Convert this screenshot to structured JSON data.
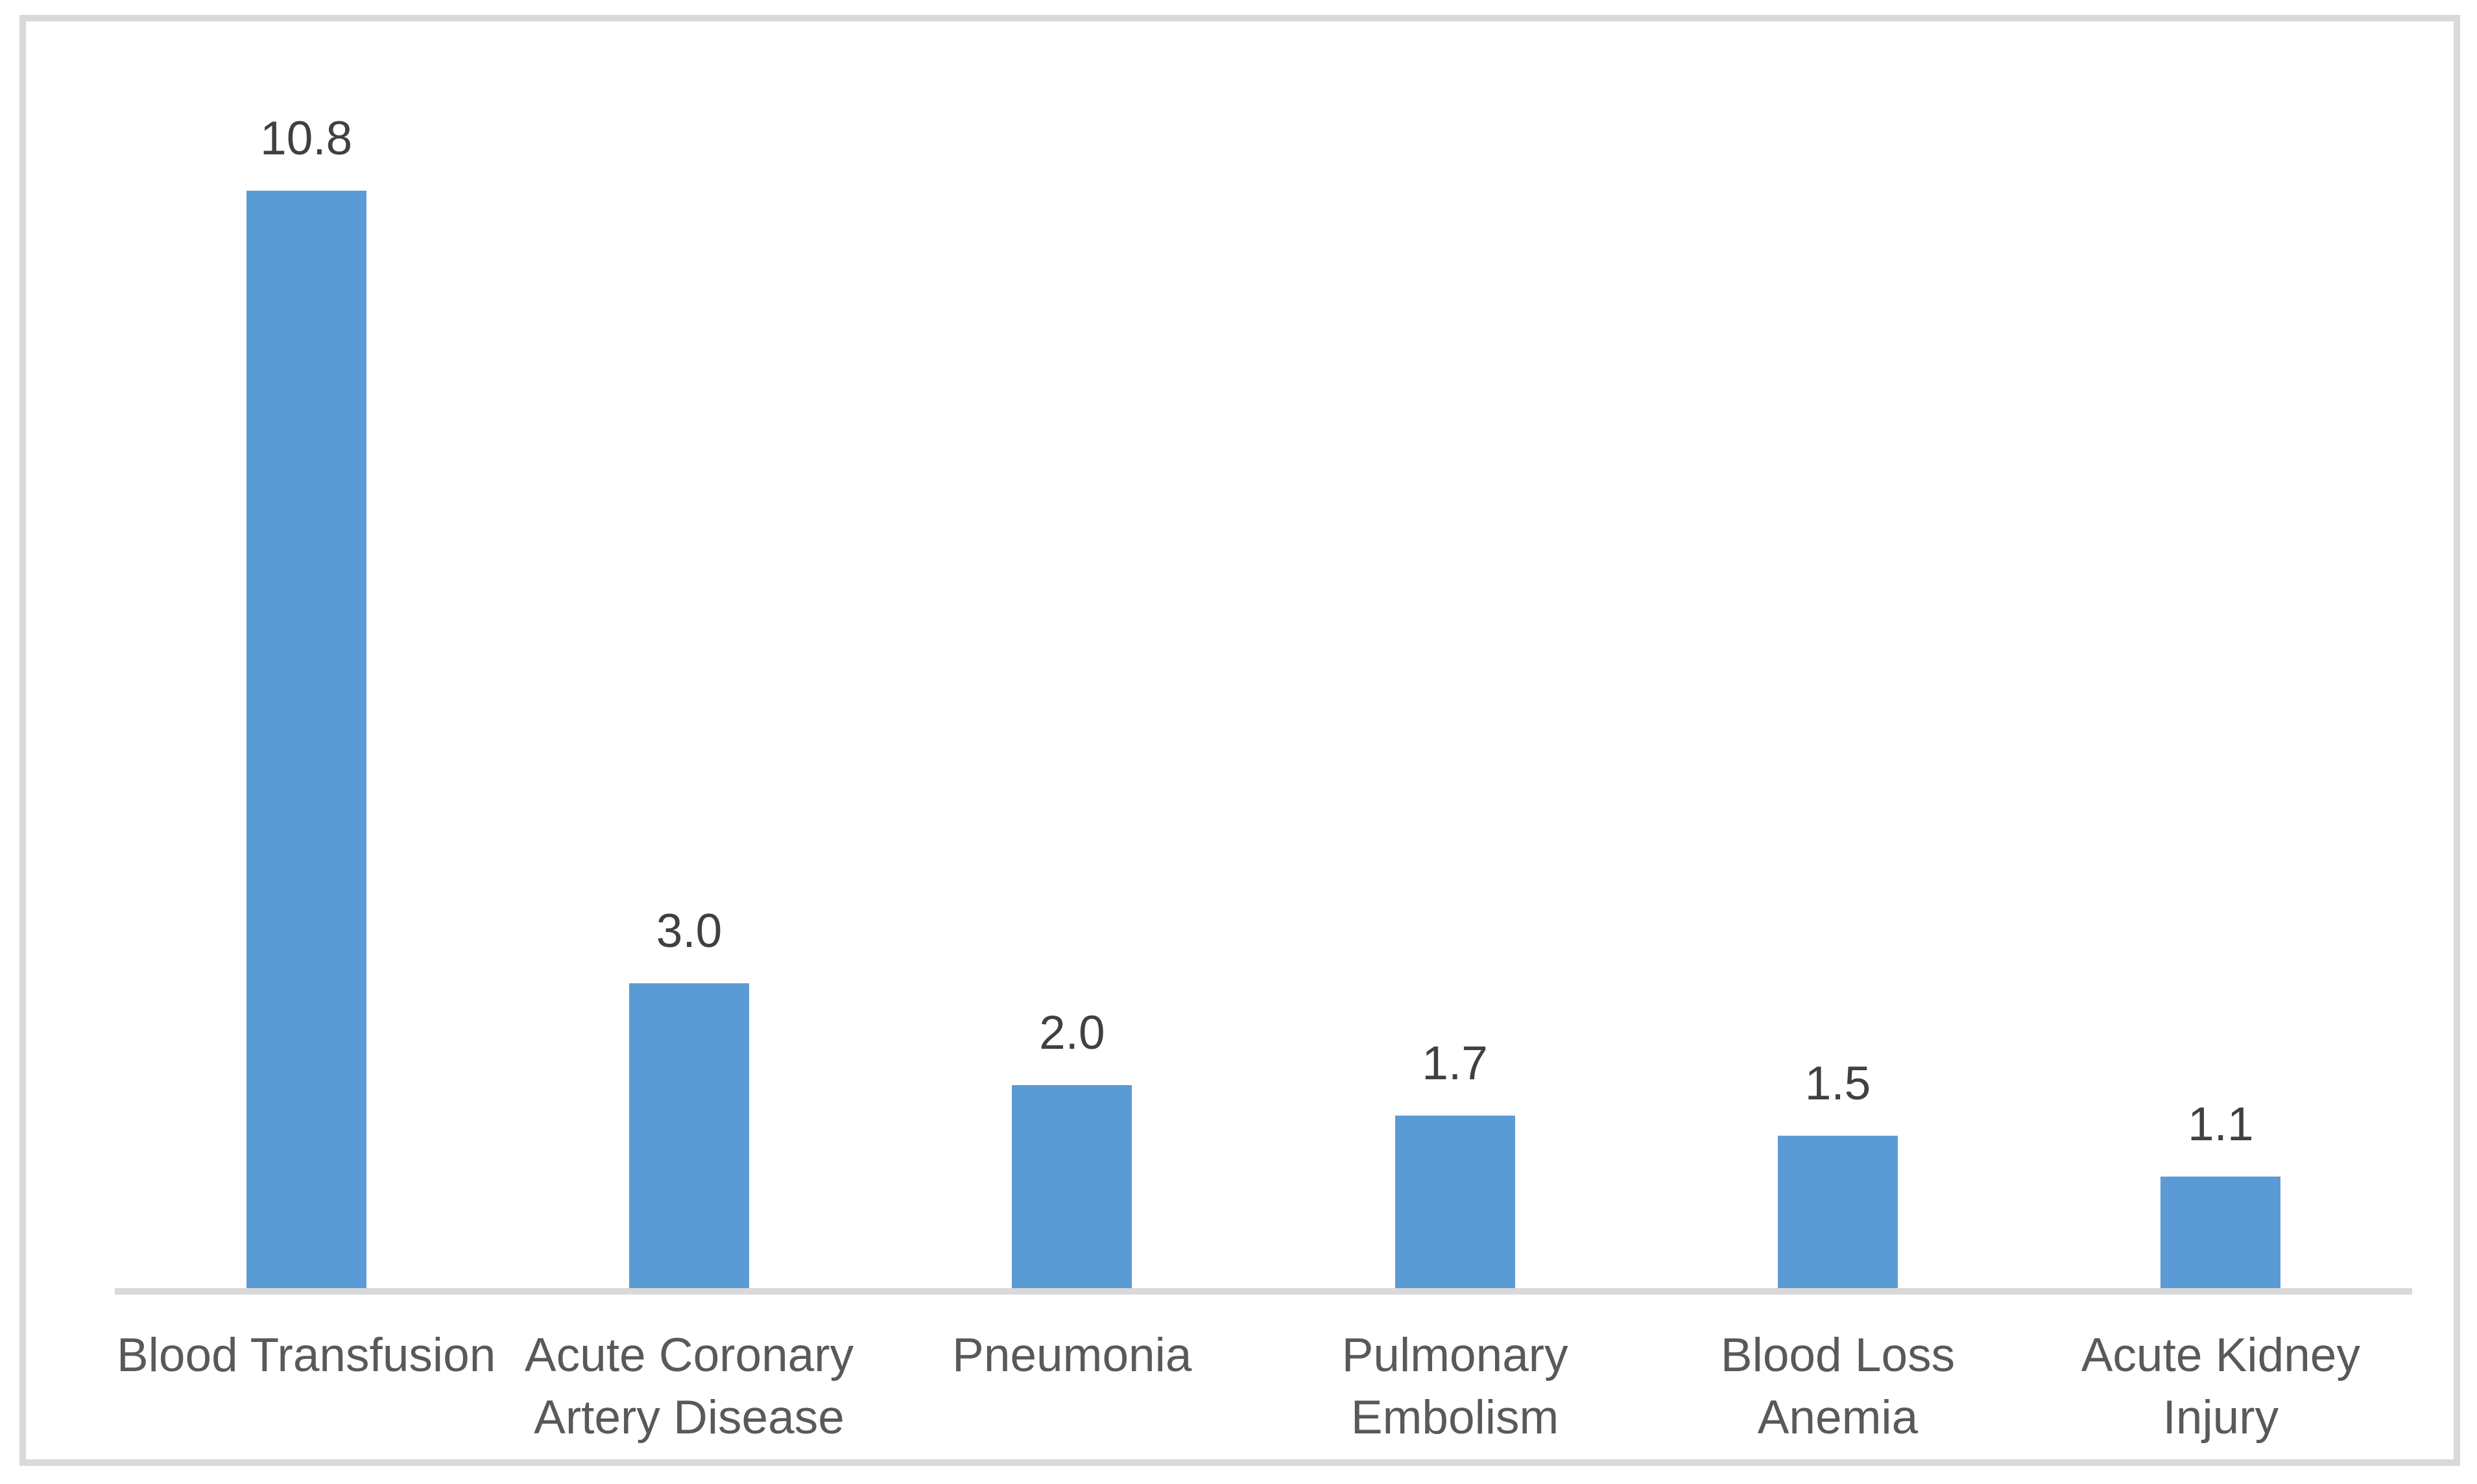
{
  "chart_data": {
    "type": "bar",
    "title": "",
    "xlabel": "",
    "ylabel": "",
    "categories": [
      "Blood Transfusion",
      "Acute Coronary Artery Disease",
      "Pneumonia",
      "Pulmonary Embolism",
      "Blood Loss Anemia",
      "Acute Kidney Injury"
    ],
    "category_display_lines": [
      [
        "Blood Transfusion"
      ],
      [
        "Acute Coronary",
        "Artery Disease"
      ],
      [
        "Pneumonia"
      ],
      [
        "Pulmonary",
        "Embolism"
      ],
      [
        "Blood Loss",
        "Anemia"
      ],
      [
        "Acute Kidney",
        "Injury"
      ]
    ],
    "values": [
      10.8,
      3.0,
      2.0,
      1.7,
      1.5,
      1.1
    ],
    "value_labels": [
      "10.8",
      "3.0",
      "2.0",
      "1.7",
      "1.5",
      "1.1"
    ],
    "ylim": [
      0,
      12
    ],
    "grid": false,
    "legend": false,
    "y_axis_visible": false,
    "colors": {
      "bar": "#5B9BD5",
      "axis_line": "#D9D9D9",
      "frame_border": "#D9D9D9",
      "value_label": "#404040",
      "category_label": "#595959",
      "background": "#FFFFFF"
    }
  }
}
